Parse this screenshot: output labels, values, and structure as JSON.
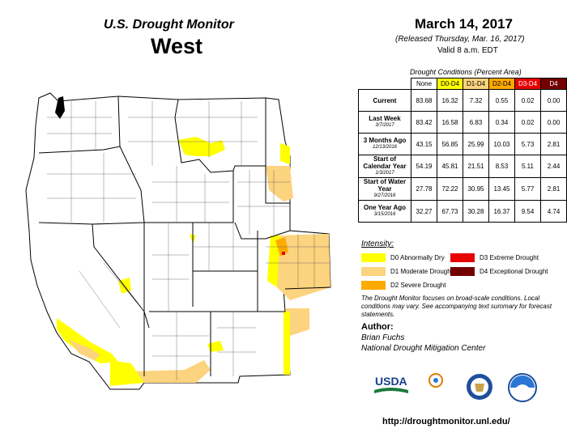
{
  "header": {
    "title": "U.S. Drought Monitor",
    "region": "West",
    "date": "March 14, 2017",
    "released": "(Released Thursday, Mar. 16, 2017)",
    "valid": "Valid  8 a.m. EDT"
  },
  "table": {
    "caption": "Drought Conditions (Percent Area)",
    "columns": [
      "None",
      "D0-D4",
      "D1-D4",
      "D2-D4",
      "D3-D4",
      "D4"
    ],
    "column_colors": [
      "#ffffff",
      "#ffff00",
      "#fcd37f",
      "#ffaa00",
      "#e60000",
      "#730000"
    ],
    "rows": [
      {
        "label": "Current",
        "sub": "",
        "values": [
          "83.68",
          "16.32",
          "7.32",
          "0.55",
          "0.02",
          "0.00"
        ]
      },
      {
        "label": "Last Week",
        "sub": "3/7/2017",
        "values": [
          "83.42",
          "16.58",
          "6.83",
          "0.34",
          "0.02",
          "0.00"
        ]
      },
      {
        "label": "3 Months Ago",
        "sub": "12/13/2016",
        "values": [
          "43.15",
          "56.85",
          "25.99",
          "10.03",
          "5.73",
          "2.81"
        ]
      },
      {
        "label": "Start of Calendar Year",
        "sub": "1/3/2017",
        "values": [
          "54.19",
          "45.81",
          "21.51",
          "8.53",
          "5.11",
          "2.44"
        ]
      },
      {
        "label": "Start of Water Year",
        "sub": "9/27/2016",
        "values": [
          "27.78",
          "72.22",
          "30.95",
          "13.45",
          "5.77",
          "2.81"
        ]
      },
      {
        "label": "One Year Ago",
        "sub": "3/15/2016",
        "values": [
          "32.27",
          "67.73",
          "30.28",
          "16.37",
          "9.54",
          "4.74"
        ]
      }
    ]
  },
  "legend": {
    "title": "Intensity:",
    "items": [
      {
        "label": "D0 Abnormally Dry",
        "color": "#ffff00"
      },
      {
        "label": "D1 Moderate Drought",
        "color": "#fcd37f"
      },
      {
        "label": "D2 Severe Drought",
        "color": "#ffaa00"
      },
      {
        "label": "D3 Extreme Drought",
        "color": "#e60000"
      },
      {
        "label": "D4 Exceptional Drought",
        "color": "#730000"
      }
    ]
  },
  "note": "The Drought Monitor focuses on broad-scale conditions. Local conditions may vary. See accompanying text summary for forecast statements.",
  "author": {
    "label": "Author:",
    "name": "Brian Fuchs",
    "org": "National Drought Mitigation Center"
  },
  "logos": [
    "USDA",
    "National Drought Mitigation Center",
    "Department of Commerce",
    "NOAA"
  ],
  "url": "http://droughtmonitor.unl.edu/"
}
